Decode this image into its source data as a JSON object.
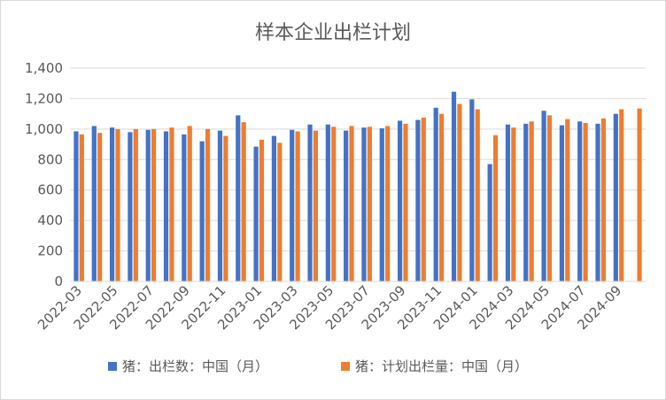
{
  "chart_data": {
    "type": "bar",
    "title": "样本企业出栏计划",
    "xlabel": "",
    "ylabel": "",
    "ylim": [
      0,
      1400
    ],
    "yticks": [
      0,
      200,
      400,
      600,
      800,
      1000,
      1200,
      1400
    ],
    "ytick_labels": [
      "0",
      "200",
      "400",
      "600",
      "800",
      "1,000",
      "1,200",
      "1,400"
    ],
    "grid": true,
    "legend_position": "bottom",
    "categories": [
      "2022-03",
      "2022-04",
      "2022-05",
      "2022-06",
      "2022-07",
      "2022-08",
      "2022-09",
      "2022-10",
      "2022-11",
      "2022-12",
      "2023-01",
      "2023-02",
      "2023-03",
      "2023-04",
      "2023-05",
      "2023-06",
      "2023-07",
      "2023-08",
      "2023-09",
      "2023-10",
      "2023-11",
      "2023-12",
      "2024-01",
      "2024-02",
      "2024-03",
      "2024-04",
      "2024-05",
      "2024-06",
      "2024-07",
      "2024-08",
      "2024-09",
      "2024-10"
    ],
    "xtick_labels": [
      "2022-03",
      "",
      "2022-05",
      "",
      "2022-07",
      "",
      "2022-09",
      "",
      "2022-11",
      "",
      "2023-01",
      "",
      "2023-03",
      "",
      "2023-05",
      "",
      "2023-07",
      "",
      "2023-09",
      "",
      "2023-11",
      "",
      "2024-01",
      "",
      "2024-03",
      "",
      "2024-05",
      "",
      "2024-07",
      "",
      "2024-09",
      ""
    ],
    "series": [
      {
        "name": "猪：出栏数：中国（月）",
        "color": "#4472C4",
        "values": [
          985,
          1020,
          1010,
          980,
          995,
          985,
          965,
          920,
          990,
          1090,
          885,
          955,
          995,
          1030,
          1030,
          990,
          1010,
          1005,
          1055,
          1060,
          1140,
          1245,
          1195,
          770,
          1030,
          1035,
          1120,
          1025,
          1050,
          1035,
          1100,
          null
        ]
      },
      {
        "name": "猪：计划出栏量：中国（月）",
        "color": "#ED7D31",
        "values": [
          965,
          975,
          1000,
          1000,
          1000,
          1010,
          1020,
          1000,
          955,
          1045,
          930,
          910,
          985,
          990,
          1015,
          1020,
          1015,
          1020,
          1035,
          1075,
          1100,
          1165,
          1130,
          960,
          1010,
          1050,
          1090,
          1065,
          1040,
          1070,
          1130,
          1135
        ]
      }
    ]
  }
}
